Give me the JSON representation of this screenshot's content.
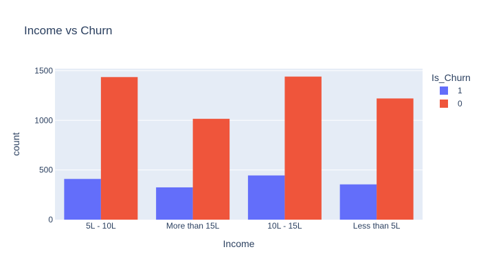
{
  "chart_data": {
    "type": "bar",
    "title": "Income vs Churn",
    "xlabel": "Income",
    "ylabel": "count",
    "categories": [
      "5L - 10L",
      "More than 15L",
      "10L - 15L",
      "Less than 5L"
    ],
    "series": [
      {
        "name": "1",
        "values": [
          410,
          325,
          445,
          355
        ],
        "color": "#636efa"
      },
      {
        "name": "0",
        "values": [
          1435,
          1015,
          1440,
          1220
        ],
        "color": "#ef553b"
      }
    ],
    "ylim": [
      0,
      1520
    ],
    "yticks": [
      0,
      500,
      1000,
      1500
    ],
    "legend": {
      "title": "Is_Churn",
      "placement": "right"
    },
    "grid": true,
    "plot_background": "#e5ecf6"
  }
}
